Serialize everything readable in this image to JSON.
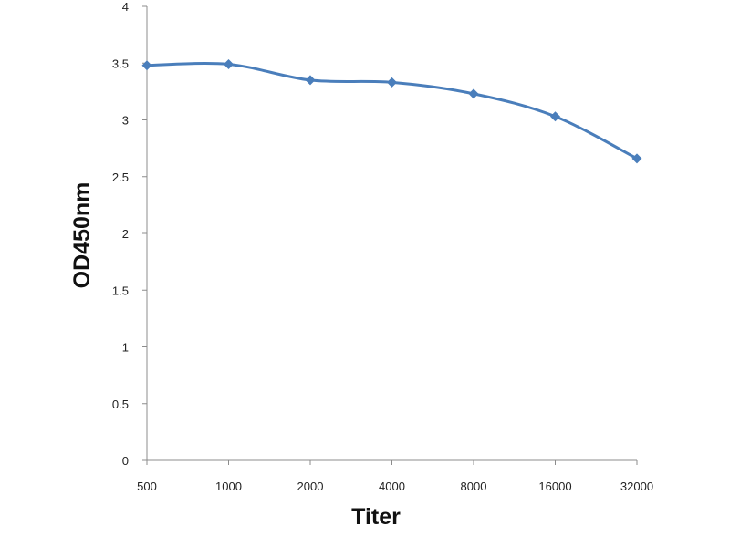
{
  "chart_data": {
    "type": "line",
    "title": "",
    "xlabel": "Titer",
    "ylabel": "OD450nm",
    "categories": [
      "500",
      "1000",
      "2000",
      "4000",
      "8000",
      "16000",
      "32000"
    ],
    "series": [
      {
        "values": [
          3.48,
          3.49,
          3.35,
          3.33,
          3.23,
          3.03,
          2.66
        ],
        "color": "#4a7ebb",
        "marker": "diamond"
      }
    ],
    "ylim": [
      0,
      4
    ],
    "yticks": [
      "0",
      "0.5",
      "1",
      "1.5",
      "2",
      "2.5",
      "3",
      "3.5",
      "4"
    ],
    "grid": false,
    "legend": "none"
  }
}
